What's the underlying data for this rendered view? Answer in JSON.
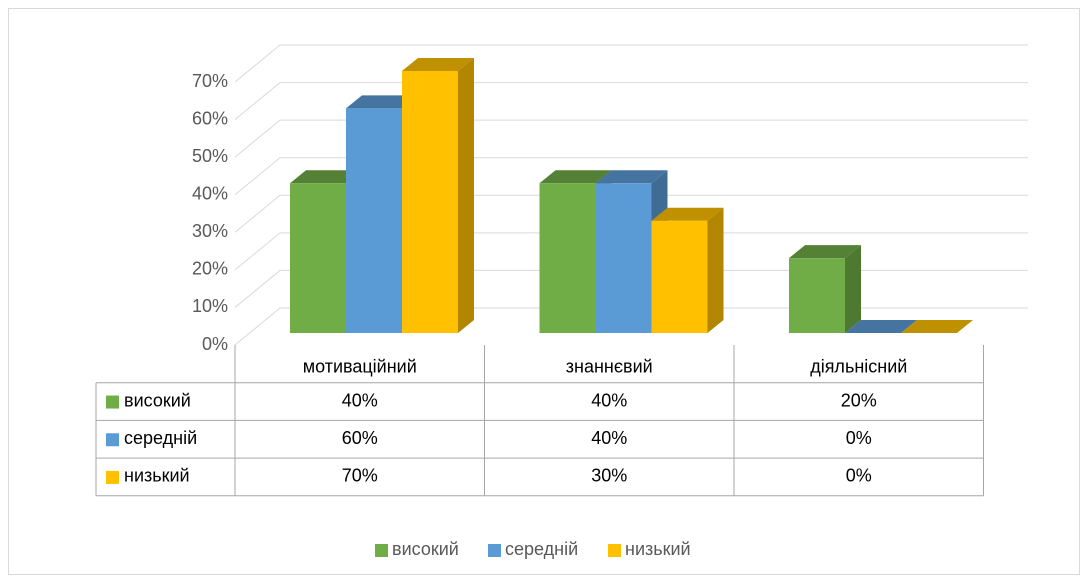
{
  "chart_data": {
    "type": "bar3d",
    "categories": [
      "мотиваційний",
      "знаннєвий",
      "діяльнісний"
    ],
    "series": [
      {
        "name": "високий",
        "color": "#70ad47",
        "values": [
          40,
          40,
          20
        ],
        "value_labels": [
          "40%",
          "40%",
          "20%"
        ]
      },
      {
        "name": "середній",
        "color": "#5b9bd5",
        "values": [
          60,
          40,
          0
        ],
        "value_labels": [
          "60%",
          "40%",
          "0%"
        ]
      },
      {
        "name": "низький",
        "color": "#ffc000",
        "values": [
          70,
          30,
          0
        ],
        "value_labels": [
          "70%",
          "30%",
          "0%"
        ]
      }
    ],
    "ylim": [
      0,
      70
    ],
    "yticks": [
      {
        "value": 0,
        "label": "0%"
      },
      {
        "value": 10,
        "label": "10%"
      },
      {
        "value": 20,
        "label": "20%"
      },
      {
        "value": 30,
        "label": "30%"
      },
      {
        "value": 40,
        "label": "40%"
      },
      {
        "value": 50,
        "label": "50%"
      },
      {
        "value": 60,
        "label": "60%"
      },
      {
        "value": 70,
        "label": "70%"
      }
    ],
    "grid": true,
    "legend": "bottom",
    "data_table": true
  }
}
